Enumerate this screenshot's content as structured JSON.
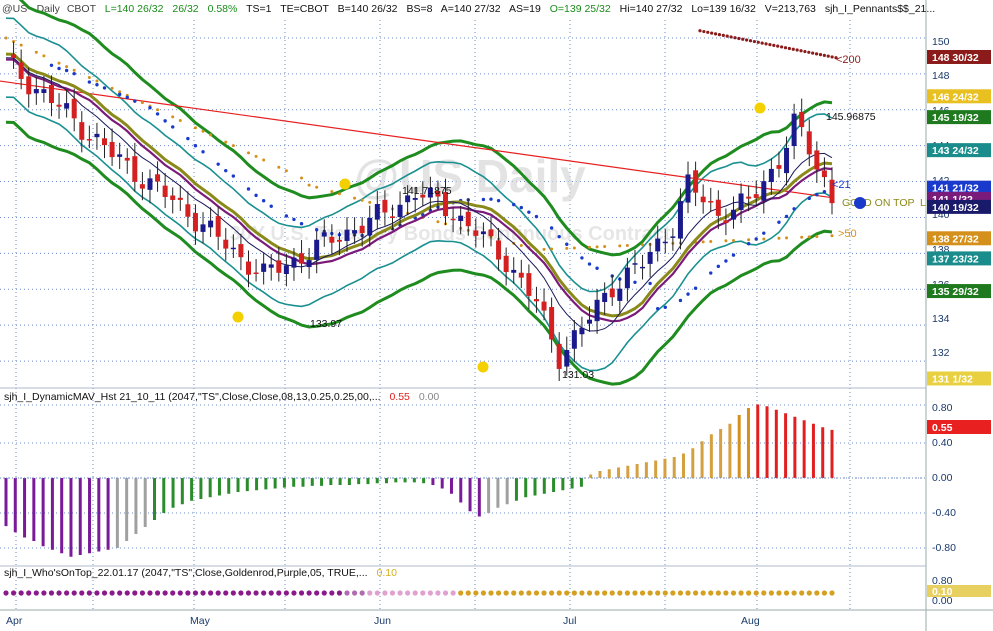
{
  "header": {
    "symbol": "@US - Daily",
    "exchange": "CBOT",
    "last": "L=140 26/32",
    "change": "26/32",
    "pct": "0.58%",
    "ts": "TS=1",
    "te": "TE=CBOT",
    "bid": "B=140 26/32",
    "bs": "BS=8",
    "ask": "A=140 27/32",
    "as": "AS=19",
    "open": "O=139 25/32",
    "high": "Hi=140 27/32",
    "low": "Lo=139 16/32",
    "volume": "V=213,763",
    "study": "sjh_I_Pennants$$_21..."
  },
  "watermark": {
    "big": "@US Daily",
    "small": "30Y U.S. Treasury Bonds Continuous Contract"
  },
  "price_axis": {
    "ticks": [
      "150",
      "148",
      "146",
      "144",
      "142",
      "140",
      "138",
      "136",
      "134",
      "132"
    ],
    "tags": [
      {
        "label": "148 30/32",
        "value": 148.94,
        "bg": "#8b1a1a",
        "fg": "#ffffff"
      },
      {
        "label": "146 24/32",
        "value": 146.75,
        "bg": "#e8c020",
        "fg": "#ffffff"
      },
      {
        "label": "145 19/32",
        "value": 145.59,
        "bg": "#1f7a1f",
        "fg": "#ffffff"
      },
      {
        "label": "143 24/32",
        "value": 143.75,
        "bg": "#1a8c8c",
        "fg": "#ffffff"
      },
      {
        "label": "141 21/32",
        "value": 141.66,
        "bg": "#1a3acc",
        "fg": "#ffffff"
      },
      {
        "label": "141 1/32",
        "value": 141.03,
        "bg": "#7a1a7a",
        "fg": "#ffffff"
      },
      {
        "label": "140 19/32",
        "value": 140.59,
        "bg": "#1a1a6b",
        "fg": "#ffffff"
      },
      {
        "label": "138 27/32",
        "value": 138.84,
        "bg": "#d4901a",
        "fg": "#ffffff"
      },
      {
        "label": "137 23/32",
        "value": 137.72,
        "bg": "#1a8c8c",
        "fg": "#ffffff"
      },
      {
        "label": "135 29/32",
        "value": 135.9,
        "bg": "#1f7a1f",
        "fg": "#ffffff"
      },
      {
        "label": "131 1/32",
        "value": 131.03,
        "bg": "#e8d040",
        "fg": "#ffffff"
      }
    ]
  },
  "annotations": {
    "a200": "<200",
    "a21": "<21",
    "a50": ">50",
    "gold": "GOLD ON TOP",
    "gold_tail": "L",
    "peak": "145.96875",
    "jun_high": "141.71875",
    "may_low": "133.97",
    "jun_low": "131.03"
  },
  "osc1": {
    "label": "sjh_I_DynamicMAV_Hst 21_10_11 (2047,\"TS\",Close,Close,08,13,0.25,0.25,00,...",
    "v1": "0.55",
    "v2": "0.00",
    "ticks": [
      "0.80",
      "0.40",
      "0.00",
      "-0.40",
      "-0.80"
    ],
    "tag": "0.55"
  },
  "osc2": {
    "label": "sjh_I_Who'sOnTop_22.01.17 (2047,\"TS\",Close,Goldenrod,Purple,05, TRUE,...",
    "v1": "0.10",
    "ticks": [
      "0.80",
      "0.00"
    ],
    "tag": "0.10"
  },
  "xaxis": {
    "months": [
      "Apr",
      "May",
      "Jun",
      "Jul",
      "Aug"
    ]
  },
  "chart_data": {
    "type": "candlestick",
    "title": "@US Daily",
    "ylim": [
      130.5,
      151
    ],
    "histogram": {
      "type": "bar",
      "ylim": [
        -0.95,
        0.95
      ],
      "values": [
        -0.55,
        -0.62,
        -0.68,
        -0.72,
        -0.78,
        -0.82,
        -0.86,
        -0.9,
        -0.88,
        -0.86,
        -0.84,
        -0.82,
        -0.8,
        -0.72,
        -0.64,
        -0.56,
        -0.48,
        -0.4,
        -0.34,
        -0.3,
        -0.26,
        -0.24,
        -0.22,
        -0.2,
        -0.18,
        -0.16,
        -0.15,
        -0.14,
        -0.13,
        -0.12,
        -0.11,
        -0.1,
        -0.1,
        -0.09,
        -0.09,
        -0.08,
        -0.08,
        -0.08,
        -0.07,
        -0.07,
        -0.06,
        -0.06,
        -0.05,
        -0.05,
        -0.05,
        -0.06,
        -0.08,
        -0.12,
        -0.18,
        -0.28,
        -0.38,
        -0.44,
        -0.4,
        -0.34,
        -0.3,
        -0.26,
        -0.22,
        -0.2,
        -0.18,
        -0.16,
        -0.14,
        -0.12,
        -0.1,
        0.04,
        0.08,
        0.1,
        0.12,
        0.14,
        0.16,
        0.18,
        0.2,
        0.22,
        0.24,
        0.28,
        0.34,
        0.42,
        0.5,
        0.56,
        0.62,
        0.72,
        0.8,
        0.84,
        0.82,
        0.78,
        0.74,
        0.7,
        0.66,
        0.62,
        0.58,
        0.55
      ]
    },
    "dots": {
      "ylim": [
        -0.2,
        1
      ]
    }
  }
}
